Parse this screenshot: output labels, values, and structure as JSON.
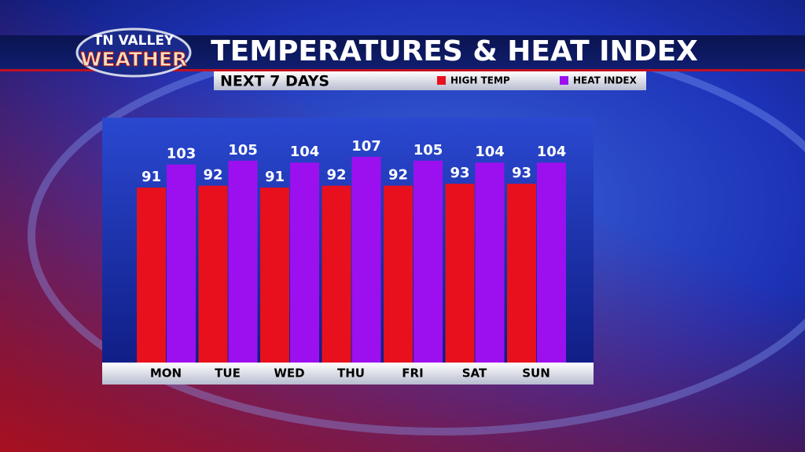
{
  "logo": {
    "line1": "TN VALLEY",
    "line2": "WEATHER"
  },
  "chart_data": {
    "type": "bar",
    "title": "TEMPERATURES & HEAT INDEX",
    "subtitle": "NEXT 7 DAYS",
    "categories": [
      "MON",
      "TUE",
      "WED",
      "THU",
      "FRI",
      "SAT",
      "SUN"
    ],
    "series": [
      {
        "name": "HIGH TEMP",
        "color": "#e8101c",
        "values": [
          91,
          92,
          91,
          92,
          92,
          93,
          93
        ]
      },
      {
        "name": "HEAT INDEX",
        "color": "#9c10f0",
        "values": [
          103,
          105,
          104,
          107,
          105,
          104,
          104
        ]
      }
    ]
  }
}
